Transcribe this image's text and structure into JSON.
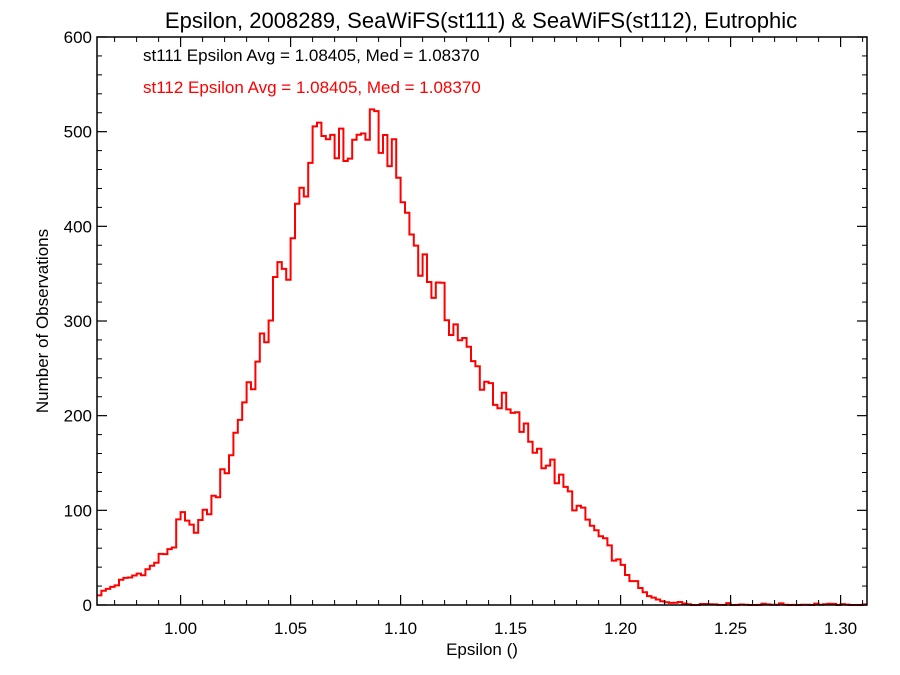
{
  "chart_data": {
    "type": "histogram",
    "title": "Epsilon, 2008289, SeaWiFS(st111) & SeaWiFS(st112), Eutrophic",
    "xlabel": "Epsilon ()",
    "ylabel": "Number of Observations",
    "xlim": [
      0.962,
      1.312
    ],
    "ylim": [
      0,
      600
    ],
    "x_ticks": [
      "1.00",
      "1.05",
      "1.10",
      "1.15",
      "1.20",
      "1.25",
      "1.30"
    ],
    "y_ticks": [
      "0",
      "100",
      "200",
      "300",
      "400",
      "500",
      "600"
    ],
    "grid": false,
    "bin_width": 0.002,
    "annotations": [
      {
        "text": "st111 Epsilon Avg = 1.08405, Med = 1.08370",
        "color": "#000000"
      },
      {
        "text": "st112 Epsilon Avg = 1.08405, Med = 1.08370",
        "color": "#ff0000"
      }
    ],
    "series": [
      {
        "color": "#ff0000",
        "x": [
          0.962,
          0.968,
          0.974,
          0.98,
          0.986,
          0.99,
          0.994,
          0.998,
          1.0,
          1.004,
          1.008,
          1.012,
          1.016,
          1.02,
          1.024,
          1.028,
          1.032,
          1.036,
          1.04,
          1.044,
          1.048,
          1.052,
          1.056,
          1.06,
          1.064,
          1.068,
          1.072,
          1.076,
          1.08,
          1.084,
          1.088,
          1.092,
          1.096,
          1.1,
          1.104,
          1.108,
          1.112,
          1.116,
          1.12,
          1.124,
          1.128,
          1.132,
          1.136,
          1.14,
          1.144,
          1.148,
          1.152,
          1.156,
          1.16,
          1.164,
          1.168,
          1.172,
          1.176,
          1.18,
          1.184,
          1.188,
          1.192,
          1.196,
          1.2,
          1.204,
          1.208,
          1.212,
          1.216,
          1.22,
          1.224,
          1.228,
          1.232,
          1.24,
          1.25,
          1.26,
          1.27,
          1.28,
          1.29,
          1.3,
          1.312
        ],
        "y": [
          10,
          18,
          26,
          32,
          38,
          48,
          58,
          66,
          100,
          78,
          85,
          96,
          115,
          140,
          170,
          210,
          240,
          255,
          300,
          345,
          350,
          400,
          440,
          480,
          495,
          500,
          488,
          475,
          490,
          500,
          505,
          490,
          480,
          440,
          400,
          375,
          355,
          330,
          315,
          300,
          280,
          255,
          245,
          235,
          220,
          205,
          195,
          185,
          170,
          160,
          148,
          132,
          118,
          105,
          92,
          80,
          68,
          55,
          42,
          30,
          20,
          10,
          6,
          4,
          3,
          2,
          1,
          1,
          1,
          0,
          1,
          0,
          1,
          0,
          0
        ]
      }
    ]
  }
}
